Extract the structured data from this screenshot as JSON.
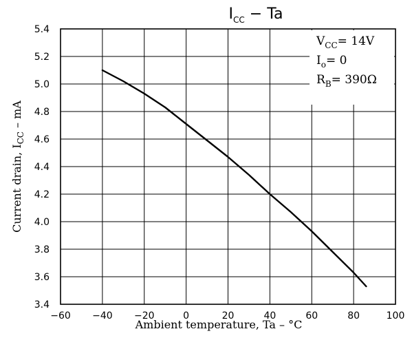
{
  "chart_data": {
    "type": "line",
    "title": {
      "main": "I",
      "sub": "CC",
      "rest": "  −  Ta"
    },
    "xlabel": "Ambient temperature, Ta  –  °C",
    "ylabel": {
      "pre": "Current drain, I",
      "sub": "CC",
      "post": "  –  mA"
    },
    "xlim": [
      -60,
      100
    ],
    "ylim": [
      3.4,
      5.4
    ],
    "x_ticks": [
      -60,
      -40,
      -20,
      0,
      20,
      40,
      60,
      80,
      100
    ],
    "y_ticks": [
      3.4,
      3.6,
      3.8,
      4.0,
      4.2,
      4.4,
      4.6,
      4.8,
      5.0,
      5.2,
      5.4
    ],
    "x_tick_labels": [
      "−60",
      "−40",
      "−20",
      "0",
      "20",
      "40",
      "60",
      "80",
      "100"
    ],
    "y_tick_labels": [
      "3.4",
      "3.6",
      "3.8",
      "4.0",
      "4.2",
      "4.4",
      "4.6",
      "4.8",
      "5.0",
      "5.2",
      "5.4"
    ],
    "grid": true,
    "conditions": [
      {
        "pre": "V",
        "sub": "CC",
        "post": "= 14V"
      },
      {
        "pre": "I",
        "sub": "o",
        "post": "= 0"
      },
      {
        "pre": "R",
        "sub": "B",
        "post": "= 390Ω"
      }
    ],
    "series": [
      {
        "x": [
          -40,
          -30,
          -20,
          -10,
          0,
          10,
          20,
          30,
          40,
          50,
          60,
          70,
          80,
          86
        ],
        "y": [
          5.1,
          5.02,
          4.93,
          4.83,
          4.71,
          4.59,
          4.47,
          4.34,
          4.2,
          4.07,
          3.93,
          3.78,
          3.63,
          3.53
        ]
      }
    ],
    "line_color": "#000000"
  }
}
